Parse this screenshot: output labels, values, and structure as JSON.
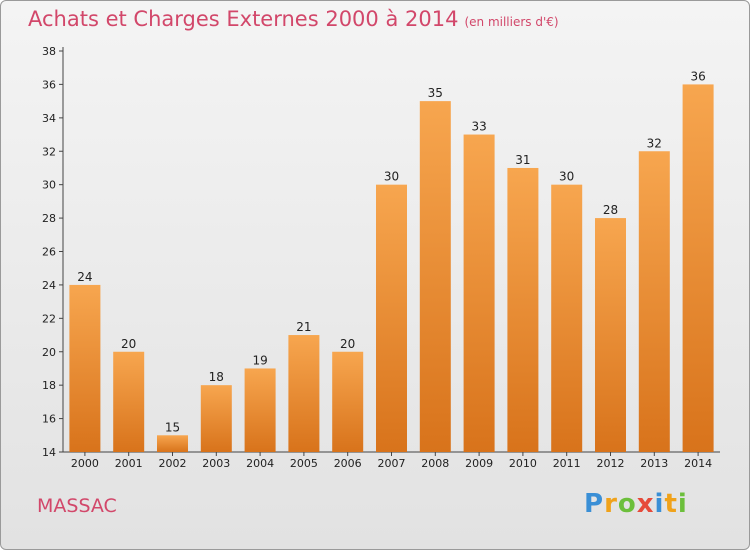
{
  "header": {
    "title": "Achats et Charges Externes 2000 à 2014",
    "subtitle": "(en milliers d'€)"
  },
  "footer": {
    "place": "MASSAC",
    "logo": "Proxiti"
  },
  "colors": {
    "accent": "#d2476a",
    "bar_light": "#f7a64f",
    "bar_dark": "#d8731b"
  },
  "chart_data": {
    "type": "bar",
    "categories": [
      "2000",
      "2001",
      "2002",
      "2003",
      "2004",
      "2005",
      "2006",
      "2007",
      "2008",
      "2009",
      "2010",
      "2011",
      "2012",
      "2013",
      "2014"
    ],
    "values": [
      24,
      20,
      15,
      18,
      19,
      21,
      20,
      30,
      35,
      33,
      31,
      30,
      28,
      32,
      36
    ],
    "title": "Achats et Charges Externes 2000 à 2014",
    "ylim": [
      14,
      38
    ],
    "yticks": [
      14,
      16,
      18,
      20,
      22,
      24,
      26,
      28,
      30,
      32,
      34,
      36,
      38
    ],
    "grid": false
  }
}
